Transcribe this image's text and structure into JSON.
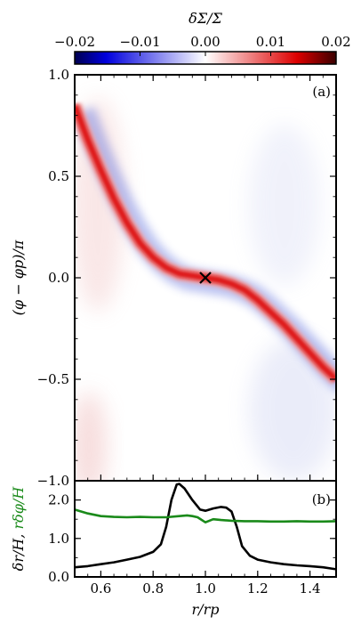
{
  "colorbar": {
    "label": "δΣ/Σ",
    "ticks": [
      "−0.02",
      "−0.01",
      "0.00",
      "0.01",
      "0.02"
    ],
    "range": [
      -0.02,
      0.02
    ],
    "colors": {
      "negative": "#0000ff",
      "zero": "#ffffff",
      "positive": "#cc0000",
      "max": "#3a0000"
    }
  },
  "chart_data": [
    {
      "type": "heatmap",
      "panel_label": "(a)",
      "xlim": [
        0.5,
        1.5
      ],
      "ylim": [
        -1.0,
        1.0
      ],
      "ylabel": "(φ − φp)/π",
      "yticks": [
        "−1.0",
        "−0.5",
        "0.0",
        "0.5",
        "1.0"
      ],
      "wake_ridge": {
        "x": [
          0.5,
          0.55,
          0.6,
          0.65,
          0.7,
          0.75,
          0.8,
          0.85,
          0.9,
          0.95,
          1.0,
          1.05,
          1.1,
          1.15,
          1.2,
          1.25,
          1.3,
          1.35,
          1.4,
          1.45,
          1.5
        ],
        "y": [
          0.85,
          0.68,
          0.53,
          0.39,
          0.27,
          0.17,
          0.1,
          0.05,
          0.02,
          0.01,
          0.0,
          -0.01,
          -0.03,
          -0.06,
          -0.11,
          -0.17,
          -0.23,
          -0.3,
          -0.37,
          -0.44,
          -0.5
        ]
      },
      "marker": {
        "x": 1.0,
        "y": 0.0,
        "symbol": "×"
      }
    },
    {
      "type": "line",
      "panel_label": "(b)",
      "xlim": [
        0.5,
        1.5
      ],
      "ylim": [
        0.0,
        2.5
      ],
      "xlabel": "r/rp",
      "xticks": [
        "0.6",
        "0.8",
        "1.0",
        "1.2",
        "1.4"
      ],
      "yticks": [
        "0.0",
        "1.0",
        "2.0"
      ],
      "ylabel_parts": [
        {
          "text": "δr/H, ",
          "color": "#000000"
        },
        {
          "text": "rδφ/H",
          "color": "#1a8a1a"
        }
      ],
      "series": [
        {
          "color": "#000000",
          "x": [
            0.5,
            0.55,
            0.6,
            0.65,
            0.7,
            0.75,
            0.8,
            0.83,
            0.85,
            0.87,
            0.89,
            0.9,
            0.92,
            0.95,
            0.98,
            1.0,
            1.03,
            1.06,
            1.08,
            1.1,
            1.12,
            1.14,
            1.17,
            1.2,
            1.25,
            1.3,
            1.35,
            1.4,
            1.45,
            1.5
          ],
          "y": [
            0.25,
            0.28,
            0.33,
            0.38,
            0.45,
            0.52,
            0.65,
            0.85,
            1.3,
            2.0,
            2.4,
            2.42,
            2.3,
            2.0,
            1.75,
            1.72,
            1.78,
            1.82,
            1.8,
            1.7,
            1.3,
            0.8,
            0.55,
            0.45,
            0.38,
            0.33,
            0.3,
            0.28,
            0.25,
            0.2
          ]
        },
        {
          "color": "#1a8a1a",
          "x": [
            0.5,
            0.55,
            0.6,
            0.65,
            0.7,
            0.75,
            0.8,
            0.85,
            0.9,
            0.93,
            0.95,
            0.97,
            1.0,
            1.03,
            1.06,
            1.1,
            1.15,
            1.2,
            1.25,
            1.3,
            1.35,
            1.4,
            1.45,
            1.5
          ],
          "y": [
            1.75,
            1.65,
            1.58,
            1.56,
            1.55,
            1.56,
            1.55,
            1.55,
            1.58,
            1.6,
            1.58,
            1.55,
            1.42,
            1.5,
            1.48,
            1.46,
            1.45,
            1.45,
            1.44,
            1.44,
            1.45,
            1.44,
            1.44,
            1.45
          ]
        }
      ]
    }
  ]
}
